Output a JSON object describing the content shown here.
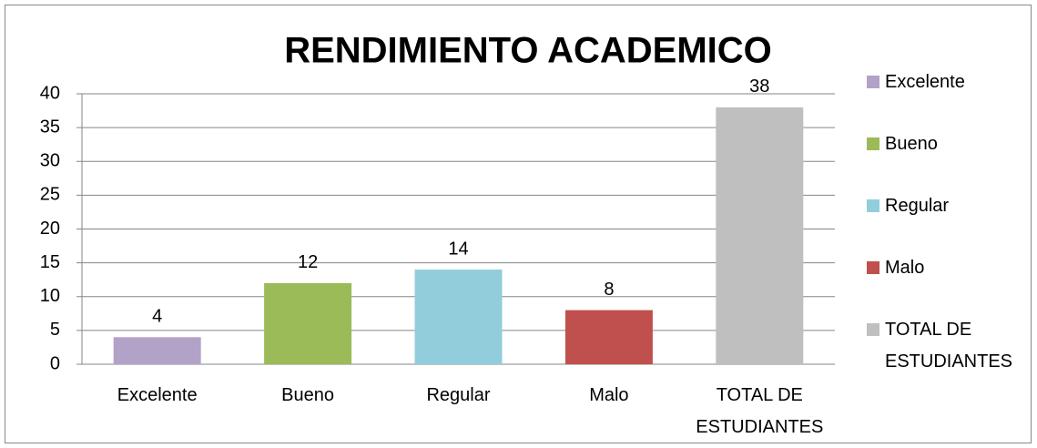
{
  "chart_data": {
    "type": "bar",
    "title": "RENDIMIENTO ACADEMICO",
    "categories": [
      "Excelente",
      "Bueno",
      "Regular",
      "Malo",
      "TOTAL DE ESTUDIANTES"
    ],
    "values": [
      4,
      12,
      14,
      8,
      38
    ],
    "colors": [
      "#b3a2c7",
      "#9bbb59",
      "#92cddc",
      "#c0504d",
      "#bfbfbf"
    ],
    "ylim": [
      0,
      40
    ],
    "yticks": [
      0,
      5,
      10,
      15,
      20,
      25,
      30,
      35,
      40
    ],
    "grid": true,
    "legend": "right"
  }
}
